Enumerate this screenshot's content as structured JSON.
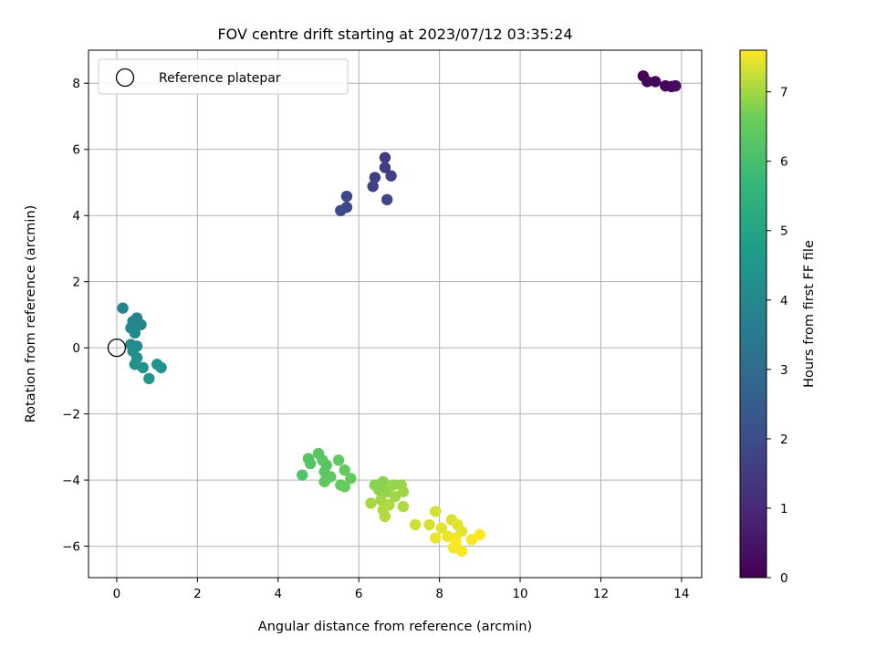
{
  "chart_data": {
    "type": "scatter",
    "title": "FOV centre drift starting at 2023/07/12 03:35:24",
    "xlabel": "Angular distance from reference (arcmin)",
    "ylabel": "Rotation from reference (arcmin)",
    "xlim": [
      -0.7,
      14.5
    ],
    "ylim": [
      -6.95,
      9.0
    ],
    "xticks": [
      0,
      2,
      4,
      6,
      8,
      10,
      12,
      14
    ],
    "yticks": [
      -6,
      -4,
      -2,
      0,
      2,
      4,
      6,
      8
    ],
    "grid": true,
    "legend": {
      "placement": "top-left",
      "entries": [
        "Reference platepar"
      ]
    },
    "reference_point": {
      "x": 0,
      "y": 0
    },
    "colorbar": {
      "label": "Hours from first FF file",
      "colormap": "viridis",
      "range": [
        0,
        7.6
      ],
      "ticks": [
        0,
        1,
        2,
        3,
        4,
        5,
        6,
        7
      ]
    },
    "series": [
      {
        "points": [
          {
            "x": 13.05,
            "y": 8.22,
            "t": 0.0
          },
          {
            "x": 13.15,
            "y": 8.05,
            "t": 0.05
          },
          {
            "x": 13.35,
            "y": 8.05,
            "t": 0.1
          },
          {
            "x": 13.6,
            "y": 7.92,
            "t": 0.15
          },
          {
            "x": 13.75,
            "y": 7.9,
            "t": 0.2
          },
          {
            "x": 13.85,
            "y": 7.92,
            "t": 0.25
          },
          {
            "x": 6.65,
            "y": 5.75,
            "t": 1.5
          },
          {
            "x": 6.65,
            "y": 5.45,
            "t": 1.55
          },
          {
            "x": 6.4,
            "y": 5.15,
            "t": 1.6
          },
          {
            "x": 6.8,
            "y": 5.2,
            "t": 1.65
          },
          {
            "x": 6.35,
            "y": 4.88,
            "t": 1.7
          },
          {
            "x": 6.7,
            "y": 4.48,
            "t": 1.75
          },
          {
            "x": 5.7,
            "y": 4.58,
            "t": 1.8
          },
          {
            "x": 5.7,
            "y": 4.25,
            "t": 1.85
          },
          {
            "x": 5.55,
            "y": 4.15,
            "t": 1.9
          },
          {
            "x": 0.15,
            "y": 1.2,
            "t": 3.8
          },
          {
            "x": 0.5,
            "y": 0.9,
            "t": 3.85
          },
          {
            "x": 0.4,
            "y": 0.8,
            "t": 3.9
          },
          {
            "x": 0.6,
            "y": 0.7,
            "t": 3.95
          },
          {
            "x": 0.35,
            "y": 0.6,
            "t": 4.0
          },
          {
            "x": 0.45,
            "y": 0.45,
            "t": 4.05
          },
          {
            "x": 0.35,
            "y": 0.1,
            "t": 4.1
          },
          {
            "x": 0.5,
            "y": 0.05,
            "t": 4.15
          },
          {
            "x": 0.4,
            "y": -0.1,
            "t": 4.2
          },
          {
            "x": 0.5,
            "y": -0.3,
            "t": 4.25
          },
          {
            "x": 0.45,
            "y": -0.5,
            "t": 4.3
          },
          {
            "x": 0.65,
            "y": -0.6,
            "t": 4.35
          },
          {
            "x": 1.0,
            "y": -0.5,
            "t": 4.4
          },
          {
            "x": 1.1,
            "y": -0.6,
            "t": 4.45
          },
          {
            "x": 0.8,
            "y": -0.93,
            "t": 4.5
          },
          {
            "x": 4.6,
            "y": -3.85,
            "t": 6.2
          },
          {
            "x": 4.75,
            "y": -3.35,
            "t": 6.22
          },
          {
            "x": 4.8,
            "y": -3.5,
            "t": 6.25
          },
          {
            "x": 5.0,
            "y": -3.2,
            "t": 6.28
          },
          {
            "x": 5.1,
            "y": -3.4,
            "t": 6.3
          },
          {
            "x": 5.2,
            "y": -3.55,
            "t": 6.32
          },
          {
            "x": 5.15,
            "y": -3.75,
            "t": 6.35
          },
          {
            "x": 5.3,
            "y": -3.9,
            "t": 6.38
          },
          {
            "x": 5.15,
            "y": -4.05,
            "t": 6.4
          },
          {
            "x": 5.5,
            "y": -3.4,
            "t": 6.42
          },
          {
            "x": 5.65,
            "y": -3.7,
            "t": 6.45
          },
          {
            "x": 5.8,
            "y": -3.95,
            "t": 6.48
          },
          {
            "x": 5.55,
            "y": -4.15,
            "t": 6.5
          },
          {
            "x": 5.65,
            "y": -4.2,
            "t": 6.52
          },
          {
            "x": 6.4,
            "y": -4.15,
            "t": 6.8
          },
          {
            "x": 6.6,
            "y": -4.05,
            "t": 6.82
          },
          {
            "x": 6.5,
            "y": -4.3,
            "t": 6.85
          },
          {
            "x": 6.7,
            "y": -4.35,
            "t": 6.88
          },
          {
            "x": 6.85,
            "y": -4.15,
            "t": 6.9
          },
          {
            "x": 7.05,
            "y": -4.15,
            "t": 6.92
          },
          {
            "x": 7.1,
            "y": -4.35,
            "t": 6.95
          },
          {
            "x": 6.9,
            "y": -4.5,
            "t": 6.98
          },
          {
            "x": 6.55,
            "y": -4.6,
            "t": 7.0
          },
          {
            "x": 6.3,
            "y": -4.7,
            "t": 7.02
          },
          {
            "x": 6.75,
            "y": -4.75,
            "t": 7.05
          },
          {
            "x": 7.1,
            "y": -4.8,
            "t": 7.08
          },
          {
            "x": 6.6,
            "y": -4.9,
            "t": 7.1
          },
          {
            "x": 6.65,
            "y": -5.1,
            "t": 7.12
          },
          {
            "x": 7.4,
            "y": -5.35,
            "t": 7.3
          },
          {
            "x": 7.9,
            "y": -4.95,
            "t": 7.32
          },
          {
            "x": 7.75,
            "y": -5.35,
            "t": 7.35
          },
          {
            "x": 8.3,
            "y": -5.2,
            "t": 7.38
          },
          {
            "x": 8.45,
            "y": -5.35,
            "t": 7.4
          },
          {
            "x": 8.05,
            "y": -5.45,
            "t": 7.42
          },
          {
            "x": 8.55,
            "y": -5.55,
            "t": 7.45
          },
          {
            "x": 7.9,
            "y": -5.75,
            "t": 7.48
          },
          {
            "x": 8.2,
            "y": -5.7,
            "t": 7.5
          },
          {
            "x": 8.4,
            "y": -5.75,
            "t": 7.52
          },
          {
            "x": 8.35,
            "y": -6.05,
            "t": 7.55
          },
          {
            "x": 8.55,
            "y": -6.15,
            "t": 7.57
          },
          {
            "x": 8.8,
            "y": -5.8,
            "t": 7.58
          },
          {
            "x": 9.0,
            "y": -5.65,
            "t": 7.6
          },
          {
            "x": 8.4,
            "y": -5.9,
            "t": 7.6
          }
        ]
      }
    ]
  }
}
